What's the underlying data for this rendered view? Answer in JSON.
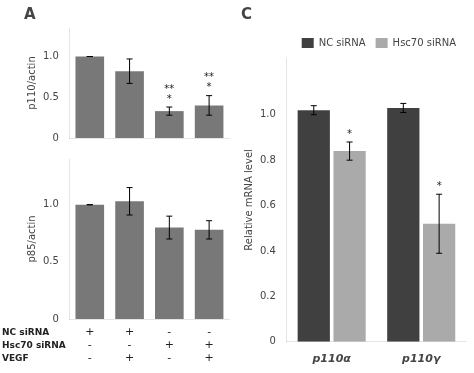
{
  "chart_data": [
    {
      "type": "bar",
      "title": "A",
      "categories": [
        null,
        null,
        null,
        null
      ],
      "values": [
        1.0,
        0.82,
        0.33,
        0.4
      ],
      "errors": [
        0.0,
        0.15,
        0.05,
        0.12
      ],
      "color": "#787878",
      "ylabel": "p110/actin",
      "ylim": [
        0,
        1.35
      ],
      "yticks": [
        0,
        0.5,
        {
          "value": 1.0,
          "label": "1.0"
        }
      ],
      "grid": false,
      "annotations": [
        {
          "text": "**\n*",
          "index": 2
        },
        {
          "text": "**\n*",
          "index": 3
        }
      ]
    },
    {
      "type": "bar",
      "categories": [
        "+\n-\n-",
        "+\n-\n+",
        "-\n+\n-",
        "-\n+\n+"
      ],
      "values": [
        1.0,
        1.03,
        0.8,
        0.78
      ],
      "errors": [
        0.0,
        0.12,
        0.1,
        0.08
      ],
      "color": "#787878",
      "ylabel": "p85/actin",
      "ylim": [
        0,
        1.4
      ],
      "yticks": [
        0,
        0.5,
        {
          "value": 1.0,
          "label": "1.0"
        }
      ],
      "grid": false,
      "annotations": [
        {
          "text": "NC siRNA"
        },
        {
          "text": "Hsc70 siRNA"
        },
        {
          "text": "VEGF"
        }
      ]
    },
    {
      "type": "bar",
      "title": "C",
      "categories": [
        "p110α",
        "p110γ"
      ],
      "series": [
        {
          "name": "NC siRNA",
          "color": "#404040",
          "values": [
            1.02,
            1.03
          ],
          "errors": [
            0.02,
            0.02
          ]
        },
        {
          "name": "Hsc70 siRNA",
          "color": "#aaaaaa",
          "values": [
            0.84,
            0.52
          ],
          "errors": [
            0.04,
            0.13
          ]
        }
      ],
      "ylabel": "Relative mRNA level",
      "ylim": [
        0,
        1.25
      ],
      "yticks": [
        0,
        0.2,
        0.4,
        0.6,
        0.8,
        {
          "value": 1.0,
          "label": "1.0"
        }
      ],
      "grid": false,
      "legend": "upper right",
      "annotations": [
        {
          "text": "*",
          "series": "Hsc70 siRNA",
          "index": 0
        },
        {
          "text": "*",
          "series": "Hsc70 siRNA",
          "index": 1
        }
      ]
    }
  ]
}
